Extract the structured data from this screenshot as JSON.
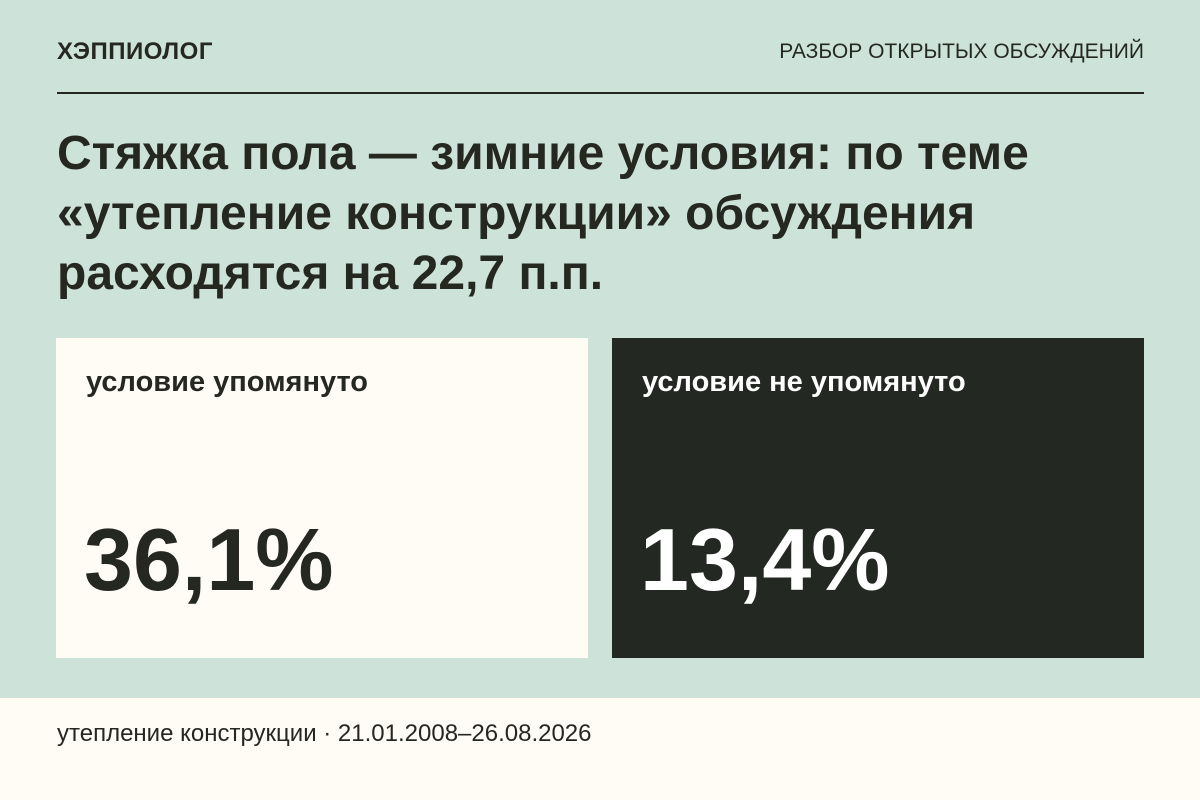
{
  "header": {
    "brand": "ХЭППИОЛОГ",
    "section": "РАЗБОР ОТКРЫТЫХ ОБСУЖДЕНИЙ"
  },
  "headline": "Стяжка пола — зимние условия: по теме «утепление конструкции» обсуждения расходятся на 22,7 п.п.",
  "cards": [
    {
      "label": "условие упомянуто",
      "value": "36,1%"
    },
    {
      "label": "условие не упомянуто",
      "value": "13,4%"
    }
  ],
  "footer": {
    "text": "утепление конструкции · 21.01.2008–26.08.2026"
  },
  "colors": {
    "background": "#cde3d9",
    "light_panel": "#fefcf4",
    "dark_panel": "#242823",
    "text_dark": "#252821",
    "text_light": "#ffffff"
  }
}
